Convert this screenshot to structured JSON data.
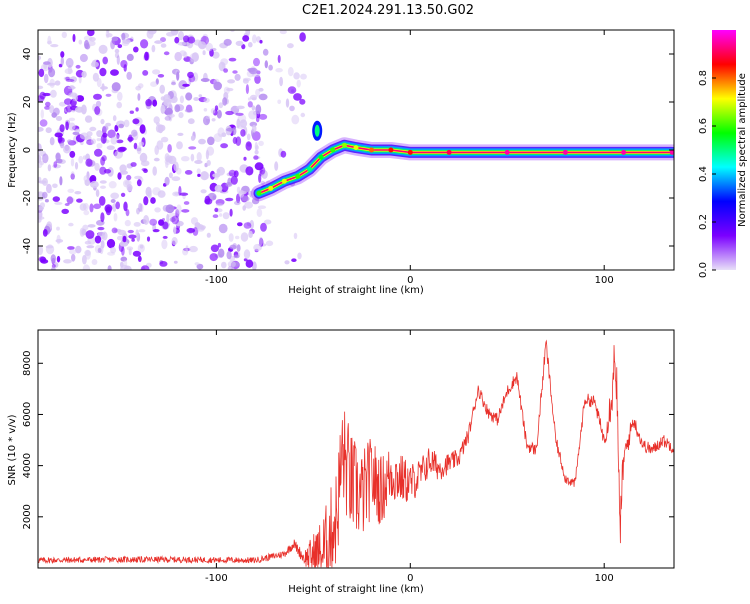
{
  "title": "C2E1.2024.291.13.50.G02",
  "chart_data": [
    {
      "type": "heatmap",
      "xlabel": "Height of straight line (km)",
      "ylabel": "Frequency (Hz)",
      "xlim": [
        -192,
        136
      ],
      "ylim": [
        -50,
        50
      ],
      "xticks": [
        -100,
        0,
        100
      ],
      "xtick_labels": [
        "-100",
        "0",
        "100"
      ],
      "yticks": [
        -40,
        -20,
        0,
        20,
        40
      ],
      "ytick_labels": [
        "-40",
        "-20",
        "0",
        "20",
        "40"
      ],
      "colorbar": {
        "label": "Normalized spectral amplitude",
        "range": [
          0,
          1
        ],
        "ticks": [
          0,
          0.2,
          0.4,
          0.6,
          0.8
        ],
        "tick_labels": [
          "0.0",
          "0.2",
          "0.4",
          "0.6",
          "0.8"
        ],
        "colormap": [
          "#e8e0f8",
          "#7b00ff",
          "#0000ff",
          "#00ffff",
          "#00ff00",
          "#ffff00",
          "#ff0000",
          "#ff00ff"
        ]
      },
      "noise_region_x": [
        -192,
        -55
      ],
      "signal_trace": [
        {
          "x": -78,
          "y": -18,
          "amp": 0.6
        },
        {
          "x": -72,
          "y": -16,
          "amp": 0.7
        },
        {
          "x": -65,
          "y": -13,
          "amp": 0.7
        },
        {
          "x": -58,
          "y": -11,
          "amp": 0.6
        },
        {
          "x": -52,
          "y": -8,
          "amp": 0.5
        },
        {
          "x": -46,
          "y": -3,
          "amp": 0.55
        },
        {
          "x": -40,
          "y": 0,
          "amp": 0.6
        },
        {
          "x": -34,
          "y": 2,
          "amp": 0.65
        },
        {
          "x": -28,
          "y": 1,
          "amp": 0.7
        },
        {
          "x": -20,
          "y": 0,
          "amp": 0.8
        },
        {
          "x": -10,
          "y": 0,
          "amp": 0.85
        },
        {
          "x": 0,
          "y": -1,
          "amp": 0.85
        },
        {
          "x": 20,
          "y": -1,
          "amp": 0.9
        },
        {
          "x": 50,
          "y": -1,
          "amp": 0.95
        },
        {
          "x": 80,
          "y": -1,
          "amp": 0.95
        },
        {
          "x": 110,
          "y": -1,
          "amp": 0.95
        },
        {
          "x": 135,
          "y": -1,
          "amp": 0.95
        }
      ],
      "burst": {
        "x": -48,
        "y": 8,
        "amp": 0.5
      }
    },
    {
      "type": "line",
      "xlabel": "Height of straight line (km)",
      "ylabel": "SNR (10 * v/v)",
      "xlim": [
        -192,
        136
      ],
      "ylim": [
        0,
        9300
      ],
      "xticks": [
        -100,
        0,
        100
      ],
      "xtick_labels": [
        "-100",
        "0",
        "100"
      ],
      "yticks": [
        2000,
        4000,
        6000,
        8000
      ],
      "ytick_labels": [
        "2000",
        "4000",
        "6000",
        "8000"
      ],
      "color": "#e8302a",
      "envelope": {
        "x": [
          -192,
          -150,
          -120,
          -80,
          -65,
          -60,
          -55,
          -45,
          -38,
          -35,
          -30,
          -25,
          -20,
          -15,
          -10,
          -5,
          0,
          5,
          10,
          15,
          20,
          25,
          30,
          35,
          40,
          45,
          50,
          55,
          60,
          65,
          70,
          75,
          80,
          85,
          90,
          95,
          100,
          103,
          106,
          108,
          110,
          115,
          120,
          125,
          130,
          136
        ],
        "y": [
          300,
          330,
          330,
          300,
          550,
          950,
          400,
          600,
          2000,
          4500,
          3200,
          2800,
          3600,
          3000,
          3700,
          3500,
          3300,
          3600,
          4200,
          3900,
          4100,
          4300,
          5200,
          7000,
          6100,
          5800,
          6900,
          7500,
          4800,
          4600,
          8800,
          5000,
          3500,
          3300,
          6600,
          6500,
          5000,
          6300,
          8500,
          1500,
          4200,
          5800,
          4800,
          4600,
          5000,
          4700
        ],
        "noise": [
          120,
          120,
          120,
          120,
          150,
          200,
          250,
          1500,
          2000,
          2200,
          2000,
          1800,
          1600,
          1400,
          1200,
          1000,
          800,
          700,
          600,
          500,
          400,
          350,
          300,
          250,
          250,
          250,
          250,
          250,
          250,
          250,
          300,
          250,
          200,
          200,
          250,
          250,
          300,
          800,
          1500,
          1200,
          600,
          300,
          250,
          250,
          250,
          250
        ]
      }
    }
  ]
}
